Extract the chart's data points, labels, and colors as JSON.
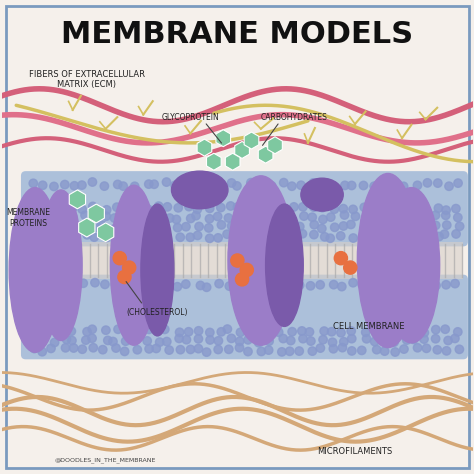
{
  "title": "MEMBRANE MODELS",
  "background_color": "#f5f0eb",
  "border_color": "#7a9abf",
  "fig_bg": "#f5f0eb",
  "colors": {
    "phospholipid_blue": "#a0b8d8",
    "phospholipid_head": "#8899cc",
    "purple_protein": "#9b7dc8",
    "purple_protein_dark": "#7a5aaa",
    "green_glyco": "#7ec8a0",
    "orange_cholesterol": "#e87040",
    "pink_fiber1": "#d4607a",
    "pink_fiber2": "#e0708a",
    "yellow_fiber": "#d4c060",
    "tan_microfilament": "#d4a878",
    "label_color": "#222222"
  },
  "labels": {
    "title": "MEMBRANE MODELS",
    "ecm": "FIBERS OF EXTRACELLULAR\nMATRIX (ECM)",
    "membrane_proteins": "MEMBRANE\nPROTEINS",
    "glycoprotein": "GLYCOPROTEIN",
    "carbohydrates": "CARBOHYDRATES",
    "cholesterol": "(CHOLESTEROL)",
    "cell_membrane": "CELL MEMBRANE",
    "microfilaments": "MICROFILAMENTS",
    "credit": "@DOODLES_IN_THE_MEMBRANE"
  }
}
